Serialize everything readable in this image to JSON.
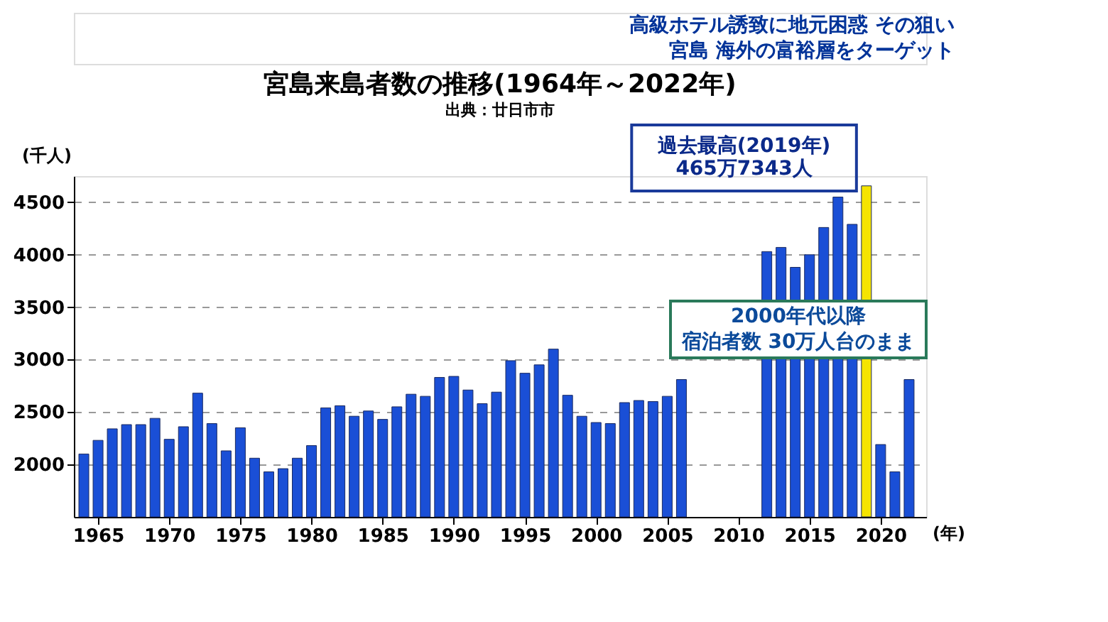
{
  "chart_data": {
    "type": "bar",
    "title": "宮島来島者数の推移(1964年～2022年)",
    "subtitle": "出典：廿日市市",
    "ylabel": "(千人)",
    "xlabel": "(年)",
    "x": [
      1964,
      1965,
      1966,
      1967,
      1968,
      1969,
      1970,
      1971,
      1972,
      1973,
      1974,
      1975,
      1976,
      1977,
      1978,
      1979,
      1980,
      1981,
      1982,
      1983,
      1984,
      1985,
      1986,
      1987,
      1988,
      1989,
      1990,
      1991,
      1992,
      1993,
      1994,
      1995,
      1996,
      1997,
      1998,
      1999,
      2000,
      2001,
      2002,
      2003,
      2004,
      2005,
      2006,
      2007,
      2008,
      2009,
      2010,
      2011,
      2012,
      2013,
      2014,
      2015,
      2016,
      2017,
      2018,
      2019,
      2020,
      2021,
      2022
    ],
    "values": [
      2100,
      2230,
      2340,
      2380,
      2380,
      2440,
      2240,
      2360,
      2680,
      2390,
      2130,
      2350,
      2060,
      1930,
      1960,
      2060,
      2180,
      2540,
      2560,
      2460,
      2510,
      2430,
      2550,
      2670,
      2650,
      2830,
      2840,
      2710,
      2580,
      2690,
      2990,
      2870,
      2950,
      3100,
      2660,
      2460,
      2400,
      2390,
      2590,
      2610,
      2600,
      2650,
      2810,
      null,
      null,
      null,
      null,
      null,
      4030,
      4070,
      3880,
      4000,
      4260,
      4550,
      4290,
      4657,
      2190,
      1930,
      2810
    ],
    "colors": [
      "#1a4fd6",
      "#1a4fd6",
      "#1a4fd6",
      "#1a4fd6",
      "#1a4fd6",
      "#1a4fd6",
      "#1a4fd6",
      "#1a4fd6",
      "#1a4fd6",
      "#1a4fd6",
      "#1a4fd6",
      "#1a4fd6",
      "#1a4fd6",
      "#1a4fd6",
      "#1a4fd6",
      "#1a4fd6",
      "#1a4fd6",
      "#1a4fd6",
      "#1a4fd6",
      "#1a4fd6",
      "#1a4fd6",
      "#1a4fd6",
      "#1a4fd6",
      "#1a4fd6",
      "#1a4fd6",
      "#1a4fd6",
      "#1a4fd6",
      "#1a4fd6",
      "#1a4fd6",
      "#1a4fd6",
      "#1a4fd6",
      "#1a4fd6",
      "#1a4fd6",
      "#1a4fd6",
      "#1a4fd6",
      "#1a4fd6",
      "#1a4fd6",
      "#1a4fd6",
      "#1a4fd6",
      "#1a4fd6",
      "#1a4fd6",
      "#1a4fd6",
      "#1a4fd6",
      "#1a4fd6",
      "#1a4fd6",
      "#1a4fd6",
      "#1a4fd6",
      "#1a4fd6",
      "#1a4fd6",
      "#1a4fd6",
      "#1a4fd6",
      "#1a4fd6",
      "#1a4fd6",
      "#1a4fd6",
      "#1a4fd6",
      "#f5e400",
      "#1a4fd6",
      "#1a4fd6",
      "#1a4fd6"
    ],
    "xlim": [
      1963.3,
      2023.2
    ],
    "xticks": [
      1965,
      1970,
      1975,
      1980,
      1985,
      1990,
      1995,
      2000,
      2005,
      2010,
      2015,
      2020
    ],
    "ylim": [
      1500,
      4750
    ],
    "yticks": [
      2000,
      2500,
      3000,
      3500,
      4000,
      4500
    ],
    "grid": "y",
    "annotations": [
      "高級ホテル誘致に地元困惑 その狙い",
      "宮島 海外の富裕層をターゲット",
      {
        "text": "過去最高(2019年)\n465万7343人",
        "x": 2019,
        "y": 4657
      },
      "2000年代以降",
      "宿泊者数 30万人台のまま"
    ]
  }
}
